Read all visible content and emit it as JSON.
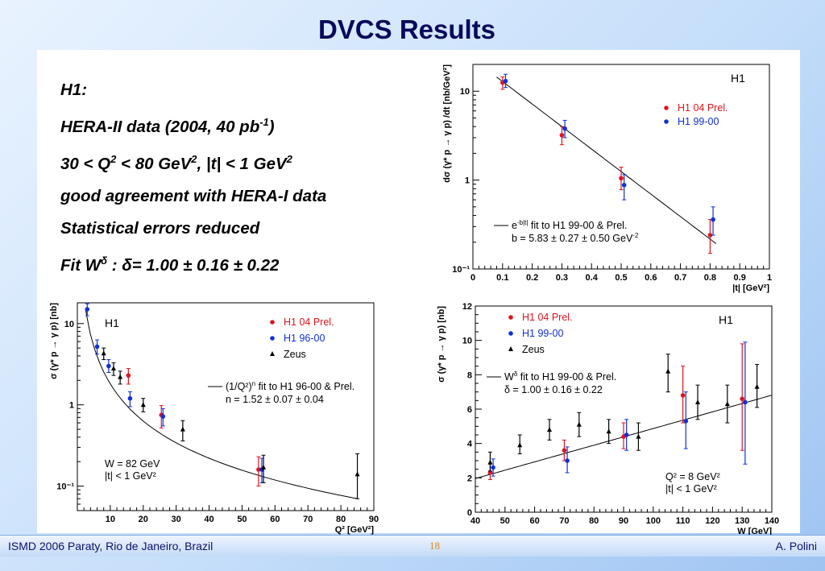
{
  "slide": {
    "title": "DVCS Results",
    "bullets": {
      "l1": "H1:",
      "l2_pre": "HERA-II data (2004, 40 pb",
      "l2_sup": "-1",
      "l2_post": ")",
      "l3_a": "30 < Q",
      "l3_sup1": "2",
      "l3_b": " < 80 GeV",
      "l3_sup2": "2",
      "l3_c": ", |t| < 1 GeV",
      "l3_sup3": "2",
      "l4": "good agreement with HERA-I data",
      "l5": "Statistical errors reduced",
      "l6_a": "Fit W",
      "l6_sup": "δ",
      "l6_b": " :  δ= 1.00 ± 0.16 ± 0.22"
    },
    "footer": {
      "left": "ISMD 2006 Paraty, Rio de Janeiro, Brazil",
      "page": "18",
      "right": "A. Polini"
    }
  },
  "colors": {
    "red": "#e0141e",
    "blue": "#1030d8",
    "black": "#000000",
    "title": "#0a0a5a"
  },
  "chart_data": [
    {
      "type": "scatter",
      "id": "t-dependence",
      "tag": "H1",
      "xlabel": "|t| [GeV²]",
      "ylabel": "dσ (γ* p → γ p) /dt [nb/GeV²]",
      "xlim": [
        0,
        1
      ],
      "ylim": [
        0.1,
        20
      ],
      "yscale": "log",
      "xticks": [
        "0",
        "0.1",
        "0.2",
        "0.3",
        "0.4",
        "0.5",
        "0.6",
        "0.7",
        "0.8",
        "0.9",
        "1"
      ],
      "yticks": [
        "10⁻¹",
        "1",
        "10"
      ],
      "legend": [
        "H1 04 Prel.",
        "H1 99-00"
      ],
      "fit_legend": [
        "e",
        "-b|t|",
        " fit to H1 99-00 & Prel."
      ],
      "fit_params": "b = 5.83 ± 0.27 ± 0.50 GeV",
      "fit_params_sup": "-2",
      "series": [
        {
          "name": "H1 04 Prel.",
          "color": "red",
          "x": [
            0.1,
            0.3,
            0.5,
            0.8
          ],
          "y": [
            12.5,
            3.2,
            1.05,
            0.24
          ],
          "elo": [
            10.5,
            2.5,
            0.78,
            0.15
          ],
          "ehi": [
            14.5,
            4.0,
            1.4,
            0.36
          ]
        },
        {
          "name": "H1 99-00",
          "color": "blue",
          "x": [
            0.11,
            0.31,
            0.51,
            0.81
          ],
          "y": [
            13.0,
            3.8,
            0.88,
            0.36
          ],
          "elo": [
            11.0,
            3.0,
            0.6,
            0.24
          ],
          "ehi": [
            15.5,
            4.7,
            1.15,
            0.5
          ]
        }
      ],
      "fit": {
        "b": 5.83,
        "norm": 23.0,
        "x": [
          0.08,
          0.82
        ]
      }
    },
    {
      "type": "scatter",
      "id": "q2-dependence",
      "tag": "H1",
      "xlabel": "Q² [GeV²]",
      "ylabel": "σ (γ* p → γ p) [nb]",
      "xlim": [
        0,
        90
      ],
      "ylim": [
        0.05,
        18
      ],
      "yscale": "log",
      "xticks": [
        "10",
        "20",
        "30",
        "40",
        "50",
        "60",
        "70",
        "80",
        "90"
      ],
      "yticks": [
        "10⁻¹",
        "1",
        "10"
      ],
      "legend": [
        "H1 04 Prel.",
        "H1 96-00",
        "Zeus"
      ],
      "fit_legend": [
        "(1/Q²)",
        "n",
        " fit to H1 96-00 & Prel."
      ],
      "fit_params": "n = 1.52 ± 0.07 ± 0.04",
      "notes": [
        "W = 82 GeV",
        "|t| < 1 GeV²"
      ],
      "series": [
        {
          "name": "H1 04 Prel.",
          "color": "red",
          "x": [
            15.5,
            25.5,
            55.0
          ],
          "y": [
            2.3,
            0.75,
            0.16
          ],
          "elo": [
            1.8,
            0.52,
            0.1
          ],
          "ehi": [
            2.8,
            0.98,
            0.23
          ]
        },
        {
          "name": "H1 96-00",
          "color": "blue",
          "x": [
            3,
            6,
            9.5,
            16,
            26,
            56
          ],
          "y": [
            15,
            5.2,
            3.0,
            1.2,
            0.72,
            0.16
          ],
          "elo": [
            12.5,
            4.2,
            2.5,
            0.95,
            0.55,
            0.11
          ],
          "ehi": [
            17.5,
            6.3,
            3.6,
            1.45,
            0.9,
            0.22
          ]
        },
        {
          "name": "Zeus",
          "color": "black",
          "x": [
            8,
            11,
            13,
            20,
            32,
            56.5,
            85
          ],
          "y": [
            4.3,
            2.8,
            2.2,
            1.0,
            0.5,
            0.17,
            0.14
          ],
          "elo": [
            3.6,
            2.3,
            1.8,
            0.82,
            0.36,
            0.11,
            0.07
          ],
          "ehi": [
            5.0,
            3.3,
            2.6,
            1.2,
            0.64,
            0.24,
            0.25
          ]
        }
      ],
      "fit": {
        "n": 1.52,
        "norm": 60.0,
        "x": [
          2.5,
          85
        ]
      }
    },
    {
      "type": "scatter",
      "id": "w-dependence",
      "tag": "H1",
      "xlabel": "W [GeV]",
      "ylabel": "σ (γ* p → γ p) [nb]",
      "xlim": [
        40,
        140
      ],
      "ylim": [
        0,
        12
      ],
      "yscale": "linear",
      "xticks": [
        "40",
        "50",
        "60",
        "70",
        "80",
        "90",
        "100",
        "110",
        "120",
        "130",
        "140"
      ],
      "yticks": [
        "0",
        "2",
        "4",
        "6",
        "8",
        "10",
        "12"
      ],
      "legend": [
        "H1 04 Prel.",
        "H1 99-00",
        "Zeus"
      ],
      "fit_legend": [
        "W",
        "δ",
        " fit to H1 99-00 & Prel."
      ],
      "fit_params": "δ = 1.00 ± 0.16 ± 0.22",
      "notes": [
        "Q² = 8 GeV²",
        "|t| < 1 GeV²"
      ],
      "series": [
        {
          "name": "H1 04 Prel.",
          "color": "red",
          "x": [
            45,
            70,
            90,
            110,
            130
          ],
          "y": [
            2.3,
            3.6,
            4.4,
            6.8,
            6.6
          ],
          "elo": [
            1.9,
            3.0,
            3.7,
            5.2,
            3.6
          ],
          "ehi": [
            2.8,
            4.2,
            5.2,
            8.5,
            9.8
          ]
        },
        {
          "name": "H1 99-00",
          "color": "blue",
          "x": [
            46,
            71,
            91,
            111,
            131
          ],
          "y": [
            2.6,
            3.0,
            4.5,
            5.3,
            6.4
          ],
          "elo": [
            2.1,
            2.3,
            3.6,
            3.7,
            2.8
          ],
          "ehi": [
            3.1,
            3.8,
            5.4,
            7.0,
            9.9
          ]
        },
        {
          "name": "Zeus",
          "color": "black",
          "x": [
            45,
            55,
            65,
            75,
            85,
            95,
            105,
            115,
            125,
            135
          ],
          "y": [
            2.9,
            3.9,
            4.8,
            5.1,
            4.7,
            4.4,
            8.2,
            6.4,
            6.3,
            7.3
          ],
          "elo": [
            2.4,
            3.4,
            4.2,
            4.4,
            4.0,
            3.6,
            7.0,
            5.4,
            5.2,
            6.1
          ],
          "ehi": [
            3.5,
            4.5,
            5.4,
            5.8,
            5.4,
            5.2,
            9.2,
            7.4,
            7.4,
            8.6
          ]
        }
      ],
      "fit": {
        "slope": 0.0485,
        "x": [
          40,
          140
        ],
        "y0": 1.96
      }
    }
  ]
}
